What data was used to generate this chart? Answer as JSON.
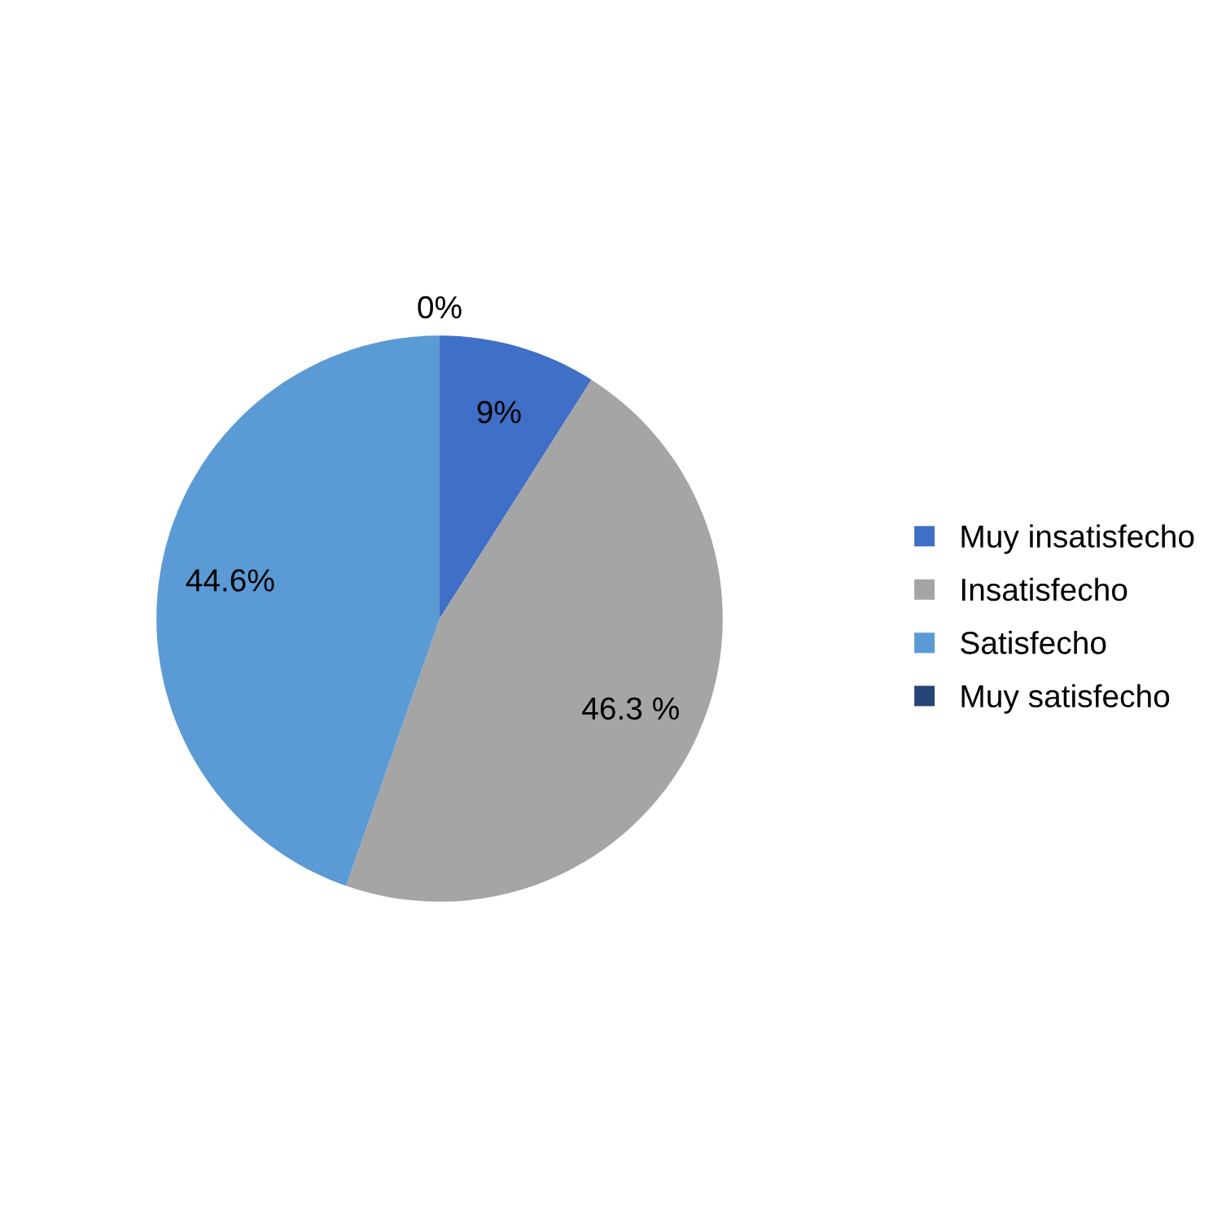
{
  "chart_data": {
    "type": "pie",
    "categories": [
      "Muy insatisfecho",
      "Insatisfecho",
      "Satisfecho",
      "Muy satisfecho"
    ],
    "values": [
      9,
      46.3,
      44.6,
      0
    ],
    "value_labels": [
      "9%",
      "46.3 %",
      "44.6%",
      "0%"
    ],
    "colors": [
      "#3f6fc7",
      "#a5a5a5",
      "#5b9bd5",
      "#264478"
    ],
    "legend": "right"
  }
}
